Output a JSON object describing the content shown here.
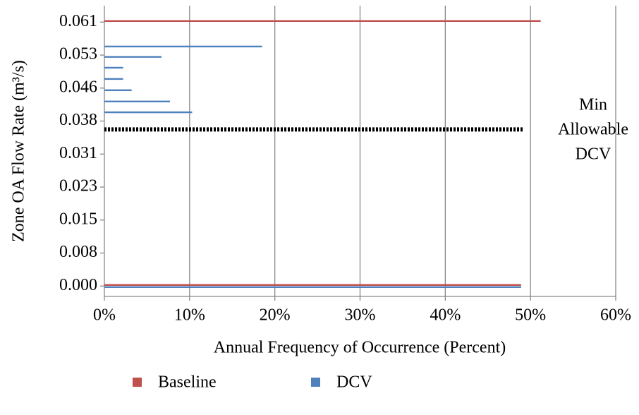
{
  "chart_data": {
    "type": "hbar",
    "x_label": "Annual Frequency of Occurrence (Percent)",
    "y_label": "Zone OA Flow Rate (m³/s)",
    "xlim": [
      0,
      60
    ],
    "xticks": [
      {
        "value": 0,
        "label": "0%"
      },
      {
        "value": 10,
        "label": "10%"
      },
      {
        "value": 20,
        "label": "20%"
      },
      {
        "value": 30,
        "label": "30%"
      },
      {
        "value": 40,
        "label": "40%"
      },
      {
        "value": 50,
        "label": "50%"
      },
      {
        "value": 60,
        "label": "60%"
      }
    ],
    "ylim": [
      -0.0024,
      0.0648
    ],
    "yticks": [
      {
        "value": 0,
        "label": "0.000"
      },
      {
        "value": 0.007625,
        "label": "0.008"
      },
      {
        "value": 0.01525,
        "label": "0.015"
      },
      {
        "value": 0.022875,
        "label": "0.023"
      },
      {
        "value": 0.0305,
        "label": "0.031"
      },
      {
        "value": 0.038125,
        "label": "0.038"
      },
      {
        "value": 0.04575,
        "label": "0.046"
      },
      {
        "value": 0.053375,
        "label": "0.053"
      },
      {
        "value": 0.061,
        "label": "0.061"
      }
    ],
    "grid": true,
    "series": [
      {
        "name": "Baseline",
        "color": "#c0504d",
        "y": [
          0,
          0.061
        ],
        "values": [
          48.9,
          51.2
        ]
      },
      {
        "name": "DCV",
        "color": "#4f81bd",
        "y": [
          0,
          0.0404,
          0.0429,
          0.0455,
          0.0481,
          0.0507,
          0.0532,
          0.0556
        ],
        "values": [
          48.9,
          10.3,
          7.7,
          3.2,
          2.2,
          2.2,
          6.7,
          18.5
        ]
      }
    ],
    "reference_line": {
      "y": 0.0362,
      "x_end": 49.1
    },
    "annotation": [
      "Min",
      "Allowable",
      "DCV"
    ]
  }
}
